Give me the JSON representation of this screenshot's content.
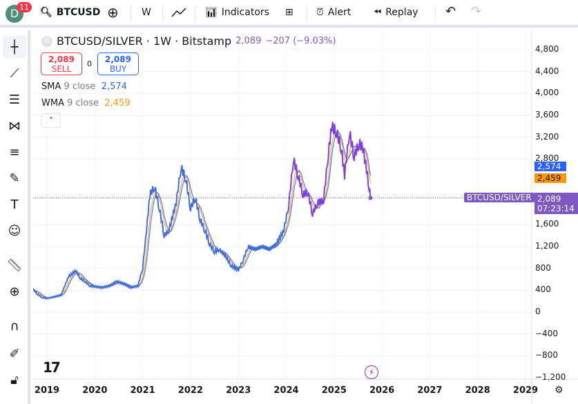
{
  "toolbar": {
    "avatar_letter": "D",
    "notifications": "11",
    "symbol": "BTCUSD",
    "interval": "W",
    "indicators": "Indicators",
    "alert": "Alert",
    "replay": "Replay"
  },
  "legend": {
    "symbol": "BTCUSD/SILVER · 1W · Bitstamp",
    "logo": "B",
    "price": "2,089",
    "change": "−207 (−9.03%)"
  },
  "trade": {
    "sell_price": "2,089",
    "sell": "SELL",
    "spread": "0",
    "buy_price": "2,089",
    "buy": "BUY"
  },
  "indicators": [
    {
      "name": "SMA",
      "params": "9 close",
      "value": "2,574",
      "color": "#2962ff"
    },
    {
      "name": "WMA",
      "params": "9 close",
      "value": "2,459",
      "color": "#ff9800"
    }
  ],
  "price_axis": [
    "4,800",
    "4,400",
    "4,000",
    "3,600",
    "3,200",
    "2,800",
    "1,600",
    "1,200",
    "800",
    "400",
    "0",
    "−400",
    "−800",
    "−1,200"
  ],
  "price_tags": {
    "sma": "2,574",
    "wma": "2,459",
    "last": "2,089",
    "countdown": "07:23:14",
    "series_label": "BTCUSD/SILVER"
  },
  "time_axis": [
    "2019",
    "2020",
    "2021",
    "2022",
    "2023",
    "2024",
    "2025",
    "2026",
    "2027",
    "2028",
    "2029"
  ],
  "chart_data": {
    "type": "line",
    "x_unit": "year",
    "y_range": [
      -1200,
      4800
    ],
    "series": [
      [
        2018.7,
        430
      ],
      [
        2018.8,
        330
      ],
      [
        2018.9,
        270
      ],
      [
        2019.0,
        250
      ],
      [
        2019.15,
        280
      ],
      [
        2019.3,
        320
      ],
      [
        2019.45,
        650
      ],
      [
        2019.6,
        760
      ],
      [
        2019.7,
        620
      ],
      [
        2019.8,
        560
      ],
      [
        2019.9,
        480
      ],
      [
        2020.0,
        470
      ],
      [
        2020.15,
        450
      ],
      [
        2020.3,
        480
      ],
      [
        2020.45,
        560
      ],
      [
        2020.6,
        520
      ],
      [
        2020.75,
        450
      ],
      [
        2020.9,
        480
      ],
      [
        2021.0,
        800
      ],
      [
        2021.08,
        1500
      ],
      [
        2021.15,
        2150
      ],
      [
        2021.25,
        2300
      ],
      [
        2021.35,
        1900
      ],
      [
        2021.45,
        1400
      ],
      [
        2021.55,
        1500
      ],
      [
        2021.7,
        2000
      ],
      [
        2021.8,
        2650
      ],
      [
        2021.9,
        2450
      ],
      [
        2022.0,
        1900
      ],
      [
        2022.1,
        2100
      ],
      [
        2022.2,
        1700
      ],
      [
        2022.3,
        1500
      ],
      [
        2022.4,
        1250
      ],
      [
        2022.5,
        1100
      ],
      [
        2022.6,
        1150
      ],
      [
        2022.75,
        1000
      ],
      [
        2022.85,
        850
      ],
      [
        2023.0,
        770
      ],
      [
        2023.1,
        950
      ],
      [
        2023.2,
        1200
      ],
      [
        2023.35,
        1150
      ],
      [
        2023.5,
        1200
      ],
      [
        2023.65,
        1150
      ],
      [
        2023.8,
        1250
      ],
      [
        2023.95,
        1500
      ],
      [
        2024.05,
        1950
      ],
      [
        2024.15,
        2800
      ],
      [
        2024.25,
        2500
      ],
      [
        2024.35,
        2150
      ],
      [
        2024.45,
        2200
      ],
      [
        2024.55,
        1800
      ],
      [
        2024.65,
        2000
      ],
      [
        2024.78,
        2050
      ],
      [
        2024.88,
        2900
      ],
      [
        2024.95,
        3400
      ],
      [
        2025.05,
        3300
      ],
      [
        2025.15,
        3000
      ],
      [
        2025.22,
        2500
      ],
      [
        2025.32,
        3300
      ],
      [
        2025.42,
        2850
      ],
      [
        2025.52,
        3100
      ],
      [
        2025.6,
        3000
      ],
      [
        2025.68,
        2600
      ],
      [
        2025.73,
        2300
      ],
      [
        2025.76,
        2089
      ]
    ]
  }
}
